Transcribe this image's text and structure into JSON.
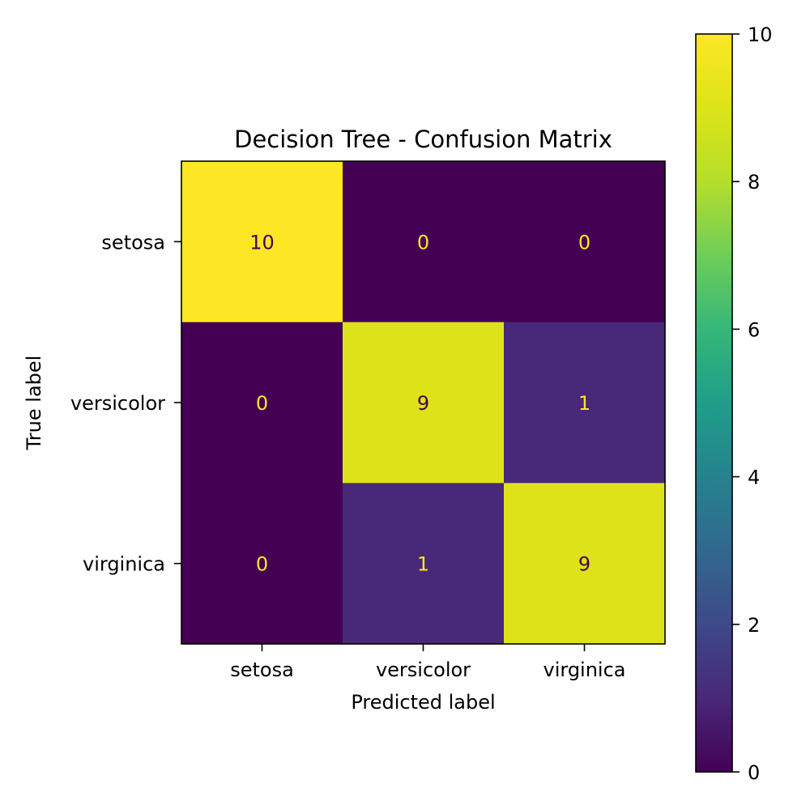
{
  "chart_data": {
    "type": "heatmap",
    "title": "Decision Tree - Confusion Matrix",
    "xlabel": "Predicted label",
    "ylabel": "True label",
    "x_categories": [
      "setosa",
      "versicolor",
      "virginica"
    ],
    "y_categories": [
      "setosa",
      "versicolor",
      "virginica"
    ],
    "values": [
      [
        10,
        0,
        0
      ],
      [
        0,
        9,
        1
      ],
      [
        0,
        1,
        9
      ]
    ],
    "colormap": "viridis",
    "colorbar": {
      "min": 0,
      "max": 10,
      "ticks": [
        0,
        2,
        4,
        6,
        8,
        10
      ]
    },
    "text_colors": {
      "dark_cell": "#fde725",
      "light_cell": "#440154"
    },
    "grid": false
  }
}
